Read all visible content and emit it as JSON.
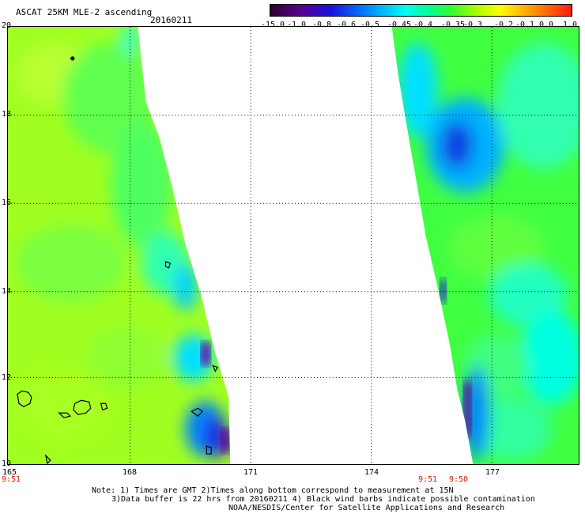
{
  "header": {
    "title": "ASCAT 25KM MLE-2 ascending",
    "date": "20160211"
  },
  "colorbar": {
    "labels": [
      "-15.0",
      "-1.0",
      "-0.8",
      "-0.6",
      "-0.5",
      "-0.45",
      "-0.4",
      "-0.35",
      "-0.3",
      "-0.2",
      "-0.1",
      "0.0",
      "1.0"
    ],
    "colors": [
      "#2a0030",
      "#6a0090",
      "#1a10e0",
      "#0080ff",
      "#00d0ff",
      "#00ffe0",
      "#00ff80",
      "#40ff20",
      "#a0ff00",
      "#ffff00",
      "#ff9000",
      "#ff2010"
    ]
  },
  "map": {
    "lat_labels": [
      "20",
      "18",
      "16",
      "14",
      "12",
      "10"
    ],
    "lon_labels": [
      "165",
      "168",
      "171",
      "174",
      "177"
    ],
    "pass_times": [
      "9:51",
      "9:51",
      "9:50"
    ],
    "dominant_color": "#a0ff20",
    "land_color": "#000000"
  },
  "footer": {
    "note_line1": "Note: 1) Times are GMT 2)Times along bottom correspond to measurement at 15N",
    "note_line2": "3)Data buffer is 22 hrs from 20160211 4) Black wind barbs indicate possible contamination",
    "credit": "NOAA/NESDIS/Center for Satellite Applications and Research"
  }
}
